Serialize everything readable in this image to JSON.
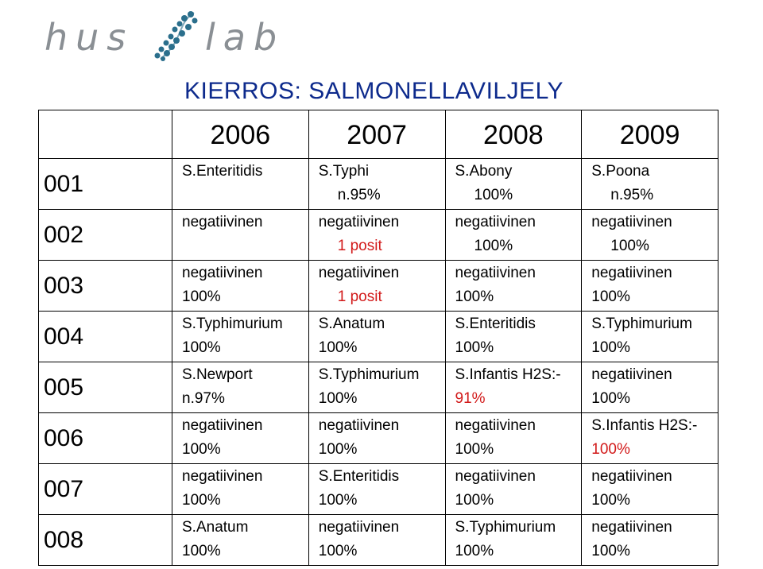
{
  "logo": {
    "left_text": "hus",
    "right_text": "lab",
    "mark_icon": "dna-helix-icon"
  },
  "title": "KIERROS: SALMONELLAVILJELY",
  "colors": {
    "title": "#0d2a8c",
    "highlight": "#d21a1a",
    "logo_gray": "#8a8f94",
    "logo_mark": "#2b6f8c"
  },
  "years": [
    "2006",
    "2007",
    "2008",
    "2009"
  ],
  "rows": [
    {
      "code": "001",
      "cells": [
        {
          "l1": "S.Enteritidis",
          "l2": ""
        },
        {
          "l1": "S.Typhi",
          "l2": "n.95%"
        },
        {
          "l1": "S.Abony",
          "l2": "100%"
        },
        {
          "l1": "S.Poona",
          "l2": "n.95%"
        }
      ]
    },
    {
      "code": "002",
      "cells": [
        {
          "l1": "negatiivinen",
          "l2": ""
        },
        {
          "l1": "negatiivinen",
          "l2": "1 posit"
        },
        {
          "l1": "negatiivinen",
          "l2": "100%"
        },
        {
          "l1": "negatiivinen",
          "l2": "100%"
        }
      ]
    },
    {
      "code": "003",
      "cells": [
        {
          "l1": "negatiivinen",
          "l2": "100%"
        },
        {
          "l1": "negatiivinen",
          "l2": "1 posit"
        },
        {
          "l1": "negatiivinen",
          "l2": "100%"
        },
        {
          "l1": "negatiivinen",
          "l2": "100%"
        }
      ]
    },
    {
      "code": "004",
      "cells": [
        {
          "l1": "S.Typhimurium",
          "l2": "100%"
        },
        {
          "l1": "S.Anatum",
          "l2": "100%"
        },
        {
          "l1": "S.Enteritidis",
          "l2": "100%"
        },
        {
          "l1": "S.Typhimurium",
          "l2": "100%"
        }
      ]
    },
    {
      "code": "005",
      "cells": [
        {
          "l1": "S.Newport",
          "l2": "n.97%"
        },
        {
          "l1": "S.Typhimurium",
          "l2": "100%"
        },
        {
          "l1": "S.Infantis H2S:-",
          "l2": "91%"
        },
        {
          "l1": "negatiivinen",
          "l2": "100%"
        }
      ]
    },
    {
      "code": "006",
      "cells": [
        {
          "l1": "negatiivinen",
          "l2": "100%"
        },
        {
          "l1": "negatiivinen",
          "l2": "100%"
        },
        {
          "l1": "negatiivinen",
          "l2": "100%"
        },
        {
          "l1": "S.Infantis H2S:-",
          "l2": "100%"
        }
      ]
    },
    {
      "code": "007",
      "cells": [
        {
          "l1": "negatiivinen",
          "l2": "100%"
        },
        {
          "l1": "S.Enteritidis",
          "l2": "100%"
        },
        {
          "l1": "negatiivinen",
          "l2": "100%"
        },
        {
          "l1": "negatiivinen",
          "l2": "100%"
        }
      ]
    },
    {
      "code": "008",
      "cells": [
        {
          "l1": "S.Anatum",
          "l2": "100%"
        },
        {
          "l1": "negatiivinen",
          "l2": "100%"
        },
        {
          "l1": "S.Typhimurium",
          "l2": "100%"
        },
        {
          "l1": "negatiivinen",
          "l2": "100%"
        }
      ]
    }
  ]
}
